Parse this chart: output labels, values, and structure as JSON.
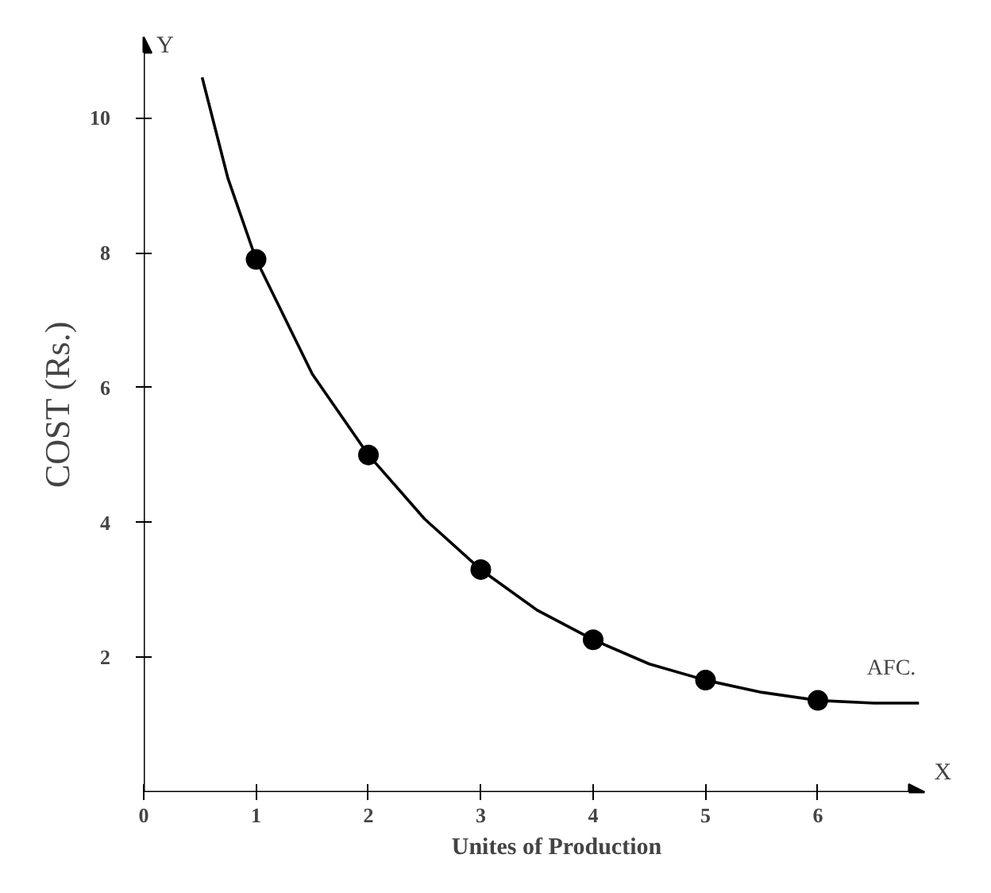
{
  "chart_data": {
    "type": "line",
    "xlabel": "Unites of Production",
    "ylabel": "COST (Rs.)",
    "annotations": [
      "Y",
      "X"
    ],
    "xlim": [
      0,
      6.95
    ],
    "ylim": [
      0,
      11.2
    ],
    "xticks": [
      0,
      1,
      2,
      3,
      4,
      5,
      6
    ],
    "yticks": [
      2,
      4,
      6,
      8,
      10
    ],
    "grid": false,
    "series": [
      {
        "name": "AFC.",
        "color": "#000000",
        "marker": "none",
        "x": [
          0.52,
          0.75,
          1,
          1.5,
          2,
          2.5,
          3,
          3.5,
          4,
          4.5,
          5,
          5.5,
          6,
          6.5,
          6.9
        ],
        "values": [
          10.6,
          9.1,
          7.9,
          6.2,
          5.0,
          4.05,
          3.3,
          2.7,
          2.26,
          1.9,
          1.66,
          1.48,
          1.36,
          1.32,
          1.32
        ]
      },
      {
        "type": "scatter",
        "color": "#000000",
        "marker": "circle",
        "x": [
          1,
          2,
          3,
          4,
          5,
          6
        ],
        "values": [
          7.9,
          5.0,
          3.3,
          2.26,
          1.66,
          1.36
        ]
      }
    ]
  }
}
